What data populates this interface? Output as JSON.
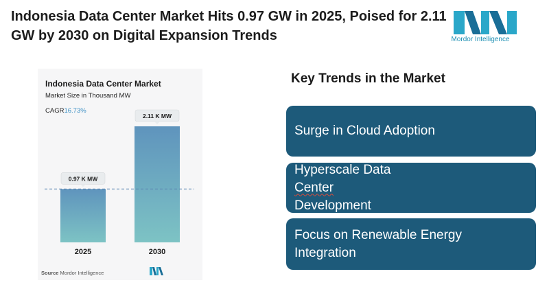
{
  "headline": "Indonesia Data Center Market Hits 0.97 GW in 2025, Poised for 2.11 GW by 2030 on Digital Expansion Trends",
  "brand": {
    "name": "Mordor Intelligence",
    "color": "#1d8fb3"
  },
  "chart_panel": {
    "cagr_label": "CAGR",
    "cagr_value": "16.73%",
    "source_label": "Source",
    "source_name": "Mordor Intelligence"
  },
  "chart_data": {
    "type": "bar",
    "title": "Indonesia Data Center Market",
    "subtitle": "Market Size in Thousand MW",
    "categories": [
      "2025",
      "2030"
    ],
    "values": [
      0.97,
      2.11
    ],
    "data_labels": [
      "0.97 K MW",
      "2.11 K MW"
    ],
    "ylim": [
      0,
      2.11
    ],
    "grid": false,
    "reference_line": 0.97,
    "bar_gradient": [
      "#5f94bd",
      "#7dc3c4"
    ]
  },
  "trends": {
    "title": "Key Trends in the Market",
    "items": [
      {
        "text": "Surge in Cloud Adoption"
      },
      {
        "line1": "Hyperscale Data ",
        "line1_marked": "Center",
        "line2": "Development"
      },
      {
        "line1": "Focus on Renewable Energy",
        "line2": "Integration"
      }
    ],
    "box_color": "#1d5a7a"
  }
}
